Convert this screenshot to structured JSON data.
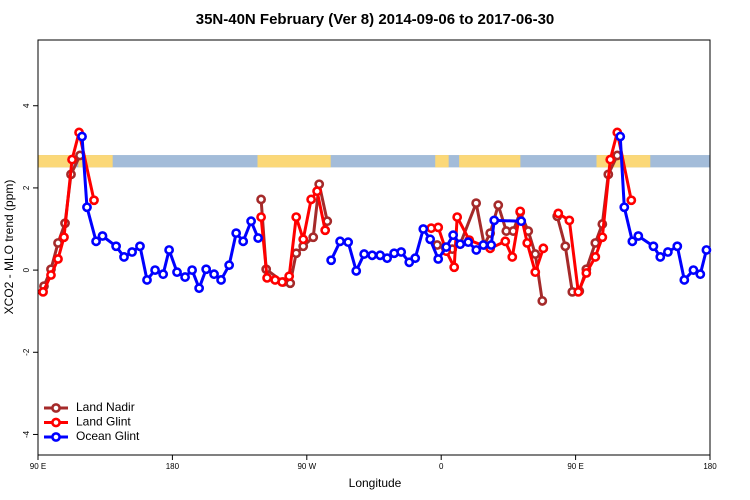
{
  "chart_data": {
    "type": "line",
    "title": "35N-40N February (Ver 8)   2014-09-06 to 2017-06-30",
    "x_label": "Longitude",
    "y_label": "XCO2 - MLO trend (ppm)",
    "xlim": [
      90,
      540
    ],
    "ylim": [
      -4.5,
      5.6
    ],
    "xticks": [
      {
        "value": 90,
        "label": "90 E"
      },
      180,
      {
        "value": 270,
        "label": "90 W"
      },
      {
        "value": 360,
        "label": "0"
      },
      {
        "value": 450,
        "label": "90 E"
      },
      {
        "value": 540,
        "label": "180"
      }
    ],
    "yticks": [
      -4,
      -2,
      0,
      2,
      4
    ],
    "legend": "bottom-left",
    "band": {
      "ylim": [
        2.5,
        2.8
      ],
      "color": "#a3bcd9",
      "land_color": "#fbd878",
      "land_ranges": [
        [
          90,
          112
        ],
        [
          117,
          140
        ],
        [
          237,
          286
        ],
        [
          356,
          365
        ],
        [
          372,
          413
        ],
        [
          464,
          500
        ]
      ]
    },
    "series": [
      {
        "name": "Land Nadir",
        "color": "#a52a2a",
        "x": [
          94,
          98.7,
          103.4,
          108.1,
          112.1,
          118.1,
          null,
          239.4,
          242.8,
          254.2,
          258.9,
          262.9,
          267.6,
          274.3,
          278.3,
          283.7,
          null,
          357.3,
          362.7,
          367.4,
          372.7,
          383.4,
          388.8,
          392.8,
          398.2,
          403.6,
          408.2,
          412.9,
          418.3,
          423,
          427.7,
          null,
          437.7,
          443.1,
          447.8,
          452.5,
          457.2,
          463.2,
          467.9,
          471.9,
          477.9
        ],
        "values": [
          -0.39,
          0.02,
          0.66,
          1.14,
          2.33,
          2.79,
          null,
          1.72,
          0.02,
          -0.29,
          -0.32,
          0.41,
          0.58,
          0.8,
          2.09,
          1.19,
          null,
          0.61,
          0.56,
          0.51,
          0.63,
          1.63,
          0.61,
          0.9,
          1.58,
          0.95,
          0.95,
          1.41,
          0.95,
          0.39,
          -0.75,
          null,
          1.31,
          0.58,
          -0.53,
          -0.51,
          0.02,
          0.66,
          1.12,
          2.33,
          2.79
        ]
      },
      {
        "name": "Land Glint",
        "color": "#ff0000",
        "x": [
          93.4,
          98.7,
          103.4,
          107.4,
          112.8,
          117.5,
          127.5,
          null,
          239.4,
          243.4,
          248.8,
          253.5,
          258.2,
          262.9,
          267.6,
          272.9,
          276.9,
          282.3,
          null,
          353.3,
          358,
          363.4,
          368.7,
          370.7,
          378.8,
          392.8,
          402.9,
          407.6,
          412.9,
          417.6,
          423,
          428.4,
          null,
          438.4,
          445.8,
          451.8,
          457.2,
          463.2,
          467.9,
          473.2,
          477.9,
          487.3
        ],
        "values": [
          -0.53,
          -0.12,
          0.27,
          0.8,
          2.69,
          3.35,
          1.7,
          null,
          1.29,
          -0.19,
          -0.24,
          -0.29,
          -0.15,
          1.29,
          0.75,
          1.72,
          1.92,
          0.97,
          null,
          1.02,
          1.04,
          0.46,
          0.07,
          1.29,
          0.73,
          0.53,
          0.7,
          0.32,
          1.43,
          0.66,
          -0.05,
          0.53,
          null,
          1.38,
          1.21,
          -0.53,
          -0.07,
          0.32,
          0.8,
          2.69,
          3.35,
          1.7
        ]
      },
      {
        "name": "Ocean Glint",
        "color": "#0000ff",
        "x": [
          119.5,
          122.8,
          128.9,
          133.2,
          142.3,
          147.6,
          153,
          158.3,
          163,
          168.4,
          173.8,
          177.8,
          183.1,
          188.5,
          193.2,
          197.9,
          202.6,
          207.9,
          212.6,
          218,
          222.7,
          227.4,
          232.7,
          237.4,
          null,
          286.3,
          292.3,
          297.7,
          303.1,
          308.4,
          313.8,
          319.1,
          323.8,
          328.5,
          333.2,
          338.6,
          342.6,
          348,
          352.6,
          358,
          363.4,
          368,
          372.7,
          378.1,
          383.5,
          388.2,
          393.5,
          395.5,
          413.6,
          null,
          479.9,
          482.6,
          488,
          492,
          502.1,
          506.7,
          511.8,
          518.1,
          522.8,
          528.9,
          533.5,
          537.6
        ],
        "values": [
          3.25,
          1.53,
          0.7,
          0.83,
          0.58,
          0.32,
          0.44,
          0.58,
          -0.24,
          0,
          -0.1,
          0.49,
          -0.05,
          -0.17,
          0,
          -0.44,
          0.02,
          -0.1,
          -0.24,
          0.12,
          0.9,
          0.7,
          1.19,
          0.78,
          null,
          0.24,
          0.7,
          0.68,
          -0.02,
          0.39,
          0.36,
          0.36,
          0.29,
          0.41,
          0.44,
          0.19,
          0.29,
          1,
          0.75,
          0.27,
          0.56,
          0.85,
          0.63,
          0.68,
          0.49,
          0.61,
          0.61,
          1.21,
          1.19,
          null,
          3.25,
          1.53,
          0.7,
          0.83,
          0.58,
          0.32,
          0.44,
          0.58,
          -0.24,
          0,
          -0.1,
          0.49
        ]
      }
    ]
  }
}
